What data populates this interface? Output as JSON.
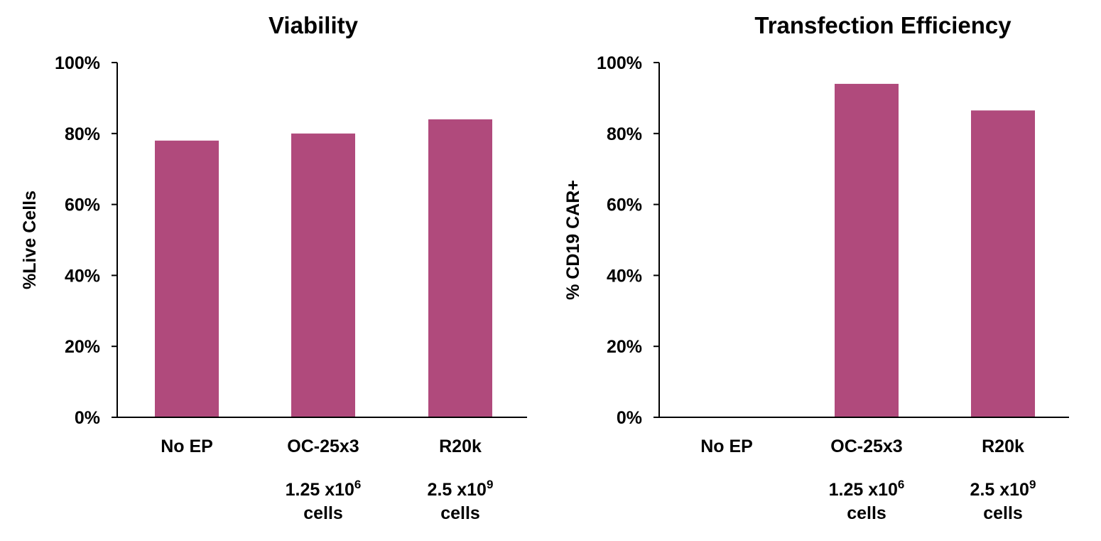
{
  "chart_data": [
    {
      "type": "bar",
      "title": "Viability",
      "xlabel": "",
      "ylabel": "%Live Cells",
      "ylim": [
        0,
        100
      ],
      "y_ticks": [
        "0%",
        "20%",
        "40%",
        "60%",
        "80%",
        "100%"
      ],
      "categories": [
        "No EP",
        "OC-25x3",
        "R20k"
      ],
      "sublabels": [
        null,
        {
          "base": "1.25 x10",
          "exp": "6",
          "unit": "cells"
        },
        {
          "base": "2.5 x10",
          "exp": "9",
          "unit": "cells"
        }
      ],
      "values": [
        78,
        80,
        84
      ],
      "grid": false,
      "color": "#b04a7c"
    },
    {
      "type": "bar",
      "title": "Transfection Efficiency",
      "xlabel": "",
      "ylabel": "% CD19 CAR+",
      "ylim": [
        0,
        100
      ],
      "y_ticks": [
        "0%",
        "20%",
        "40%",
        "60%",
        "80%",
        "100%"
      ],
      "categories": [
        "No EP",
        "OC-25x3",
        "R20k"
      ],
      "sublabels": [
        null,
        {
          "base": "1.25 x10",
          "exp": "6",
          "unit": "cells"
        },
        {
          "base": "2.5 x10",
          "exp": "9",
          "unit": "cells"
        }
      ],
      "values": [
        0,
        94,
        86.5
      ],
      "grid": false,
      "color": "#b04a7c"
    }
  ]
}
